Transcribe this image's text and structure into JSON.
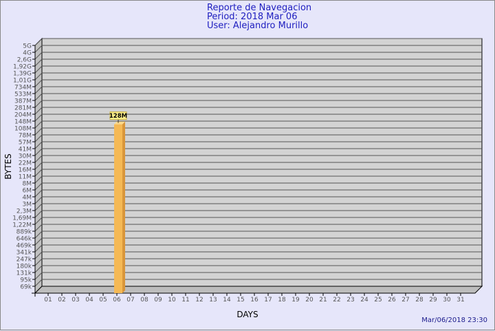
{
  "header": {
    "title": "Reporte de Navegacion",
    "period": "Period: 2018 Mar 06",
    "user": "User: Alejandro Murillo"
  },
  "timestamp": "Mar/06/2018 23:30",
  "chart_data": {
    "type": "bar",
    "xlabel": "DAYS",
    "ylabel": "BYTES",
    "categories": [
      "01",
      "02",
      "03",
      "04",
      "05",
      "06",
      "07",
      "08",
      "09",
      "10",
      "11",
      "12",
      "13",
      "14",
      "15",
      "16",
      "17",
      "18",
      "19",
      "20",
      "21",
      "22",
      "23",
      "24",
      "25",
      "26",
      "27",
      "28",
      "29",
      "30",
      "31"
    ],
    "series": [
      {
        "values": [
          0,
          0,
          0,
          0,
          0,
          "128M",
          0,
          0,
          0,
          0,
          0,
          0,
          0,
          0,
          0,
          0,
          0,
          0,
          0,
          0,
          0,
          0,
          0,
          0,
          0,
          0,
          0,
          0,
          0,
          0,
          0
        ]
      }
    ],
    "data_labels": {
      "06": "128M"
    },
    "y_tick_labels": [
      "5G",
      "4G",
      "2,6G",
      "1,92G",
      "1,39G",
      "1,01G",
      "734M",
      "533M",
      "387M",
      "281M",
      "204M",
      "148M",
      "108M",
      "78M",
      "57M",
      "41M",
      "30M",
      "22M",
      "16M",
      "11M",
      "8M",
      "6M",
      "4M",
      "3M",
      "2,3M",
      "1,69M",
      "1,22M",
      "889k",
      "646k",
      "469k",
      "341k",
      "247k",
      "180k",
      "131k",
      "95k",
      "69k"
    ],
    "y_scale": "log",
    "grid": true,
    "colors": {
      "bar": "#f5b955",
      "bar_side": "#d9963a",
      "plot_bg": "#d3d3d3",
      "label_bg": "#fff08c"
    }
  }
}
